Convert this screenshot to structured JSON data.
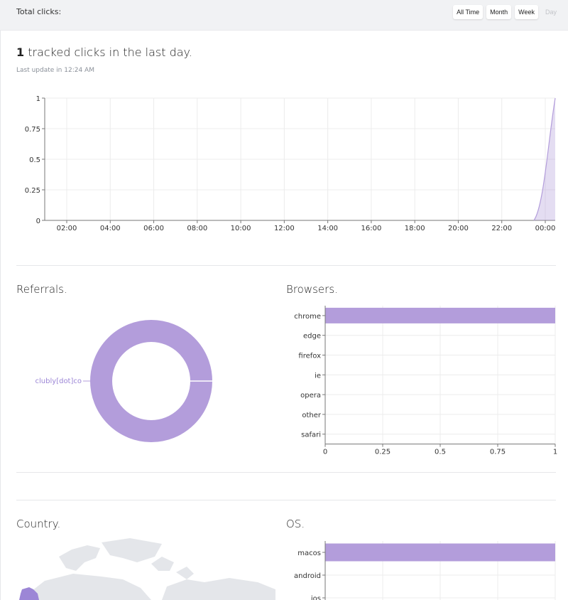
{
  "header": {
    "title": "Total clicks:",
    "ranges": [
      "All Time",
      "Month",
      "Week",
      "Day"
    ],
    "active_range": "Day"
  },
  "summary": {
    "count": "1",
    "text": " tracked clicks in the last day.",
    "last_update": "Last update in 12:24 AM"
  },
  "colors": {
    "accent": "#b39ddb",
    "grid": "#ececec",
    "axis": "#777777"
  },
  "sections": {
    "referrals": "Referrals.",
    "browsers": "Browsers.",
    "country": "Country.",
    "os": "OS."
  },
  "chart_data": [
    {
      "type": "area",
      "title": "",
      "x": [
        "02:00",
        "04:00",
        "06:00",
        "08:00",
        "10:00",
        "12:00",
        "14:00",
        "16:00",
        "18:00",
        "20:00",
        "22:00",
        "00:00"
      ],
      "ylim": [
        0,
        1
      ],
      "yticks": [
        "0",
        "0.25",
        "0.5",
        "0.75",
        "1"
      ],
      "series": [
        {
          "values": [
            0,
            0,
            0,
            0,
            0,
            0,
            0,
            0,
            0,
            0,
            0,
            1
          ]
        }
      ]
    },
    {
      "type": "pie",
      "title": "Referrals.",
      "categories": [
        "clubly[dot]co"
      ],
      "values": [
        1
      ]
    },
    {
      "type": "bar",
      "title": "Browsers.",
      "categories": [
        "chrome",
        "edge",
        "firefox",
        "ie",
        "opera",
        "other",
        "safari"
      ],
      "values": [
        1,
        0,
        0,
        0,
        0,
        0,
        0
      ],
      "xlim": [
        0,
        1
      ],
      "xticks": [
        "0",
        "0.25",
        "0.5",
        "0.75",
        "1"
      ]
    },
    {
      "type": "bar",
      "title": "OS.",
      "categories": [
        "macos",
        "android",
        "ios"
      ],
      "values": [
        1,
        0,
        0
      ]
    }
  ]
}
